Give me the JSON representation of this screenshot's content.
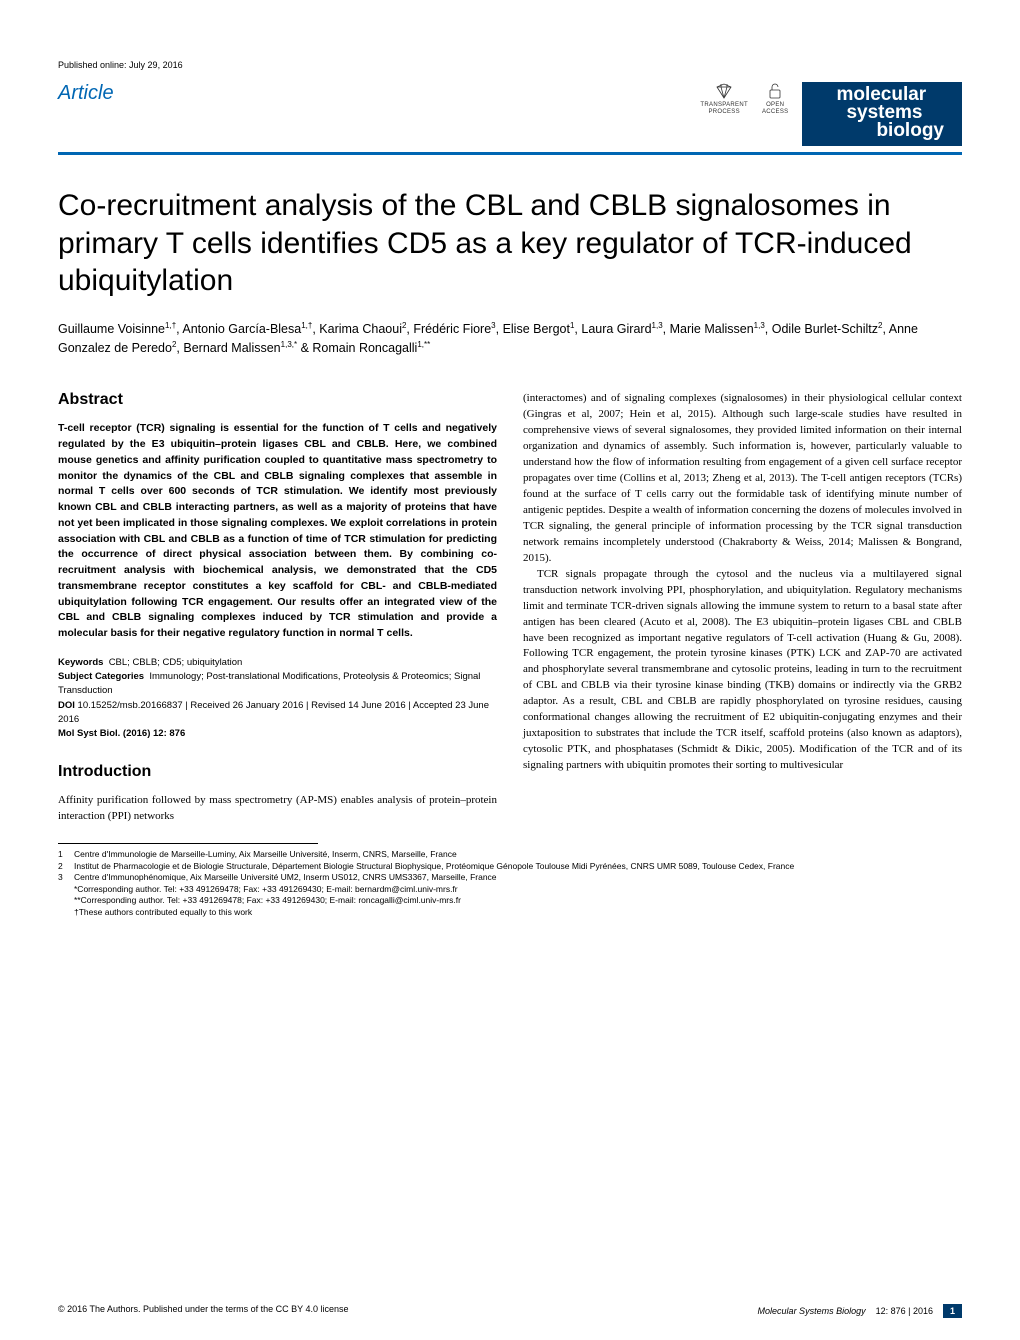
{
  "pub_date": "Published online: July 29, 2016",
  "article_label": "Article",
  "badges": {
    "transparent": "TRANSPARENT\nPROCESS",
    "open": "OPEN\nACCESS"
  },
  "journal": {
    "l1": "molecular",
    "l2": "systems",
    "l3": "biology"
  },
  "title": "Co-recruitment analysis of the CBL and CBLB signalosomes in primary T cells identifies CD5 as a key regulator of TCR-induced ubiquitylation",
  "authors_html": "Guillaume Voisinne<sup>1,†</sup>, Antonio García-Blesa<sup>1,†</sup>, Karima Chaoui<sup>2</sup>, Frédéric Fiore<sup>3</sup>, Elise Bergot<sup>1</sup>, Laura Girard<sup>1,3</sup>, Marie Malissen<sup>1,3</sup>, Odile Burlet-Schiltz<sup>2</sup>, Anne Gonzalez de Peredo<sup>2</sup>, Bernard Malissen<sup>1,3,*</sup> & Romain Roncagalli<sup>1,**</sup>",
  "abstract_h": "Abstract",
  "abstract": "T-cell receptor (TCR) signaling is essential for the function of T cells and negatively regulated by the E3 ubiquitin–protein ligases CBL and CBLB. Here, we combined mouse genetics and affinity purification coupled to quantitative mass spectrometry to monitor the dynamics of the CBL and CBLB signaling complexes that assemble in normal T cells over 600 seconds of TCR stimulation. We identify most previously known CBL and CBLB interacting partners, as well as a majority of proteins that have not yet been implicated in those signaling complexes. We exploit correlations in protein association with CBL and CBLB as a function of time of TCR stimulation for predicting the occurrence of direct physical association between them. By combining co-recruitment analysis with biochemical analysis, we demonstrated that the CD5 transmembrane receptor constitutes a key scaffold for CBL- and CBLB-mediated ubiquitylation following TCR engagement. Our results offer an integrated view of the CBL and CBLB signaling complexes induced by TCR stimulation and provide a molecular basis for their negative regulatory function in normal T cells.",
  "keywords_label": "Keywords",
  "keywords": "CBL; CBLB; CD5; ubiquitylation",
  "subjects_label": "Subject Categories",
  "subjects": "Immunology; Post-translational Modifications, Proteolysis & Proteomics; Signal Transduction",
  "doi_label": "DOI",
  "doi": "10.15252/msb.20166837 | Received 26 January 2016 | Revised 14 June 2016 | Accepted 23 June 2016",
  "cite": "Mol Syst Biol. (2016) 12: 876",
  "intro_h": "Introduction",
  "intro_p1": "Affinity purification followed by mass spectrometry (AP-MS) enables analysis of protein–protein interaction (PPI) networks",
  "right_p1": "(interactomes) and of signaling complexes (signalosomes) in their physiological cellular context (Gingras et al, 2007; Hein et al, 2015). Although such large-scale studies have resulted in comprehensive views of several signalosomes, they provided limited information on their internal organization and dynamics of assembly. Such information is, however, particularly valuable to understand how the flow of information resulting from engagement of a given cell surface receptor propagates over time (Collins et al, 2013; Zheng et al, 2013). The T-cell antigen receptors (TCRs) found at the surface of T cells carry out the formidable task of identifying minute number of antigenic peptides. Despite a wealth of information concerning the dozens of molecules involved in TCR signaling, the general principle of information processing by the TCR signal transduction network remains incompletely understood (Chakraborty & Weiss, 2014; Malissen & Bongrand, 2015).",
  "right_p2": "TCR signals propagate through the cytosol and the nucleus via a multilayered signal transduction network involving PPI, phosphorylation, and ubiquitylation. Regulatory mechanisms limit and terminate TCR-driven signals allowing the immune system to return to a basal state after antigen has been cleared (Acuto et al, 2008). The E3 ubiquitin–protein ligases CBL and CBLB have been recognized as important negative regulators of T-cell activation (Huang & Gu, 2008). Following TCR engagement, the protein tyrosine kinases (PTK) LCK and ZAP-70 are activated and phosphorylate several transmembrane and cytosolic proteins, leading in turn to the recruitment of CBL and CBLB via their tyrosine kinase binding (TKB) domains or indirectly via the GRB2 adaptor. As a result, CBL and CBLB are rapidly phosphorylated on tyrosine residues, causing conformational changes allowing the recruitment of E2 ubiquitin-conjugating enzymes and their juxtaposition to substrates that include the TCR itself, scaffold proteins (also known as adaptors), cytosolic PTK, and phosphatases (Schmidt & Dikic, 2005). Modification of the TCR and of its signaling partners with ubiquitin promotes their sorting to multivesicular",
  "affiliations": [
    "Centre d'Immunologie de Marseille-Luminy, Aix Marseille Université, Inserm, CNRS, Marseille, France",
    "Institut de Pharmacologie et de Biologie Structurale, Département Biologie Structural Biophysique, Protéomique Génopole Toulouse Midi Pyrénées, CNRS UMR 5089, Toulouse Cedex, France",
    "Centre d'Immunophénomique, Aix Marseille Université UM2, Inserm US012, CNRS UMS3367, Marseille, France"
  ],
  "corr1": "*Corresponding author. Tel: +33 491269478; Fax: +33 491269430; E-mail: bernardm@ciml.univ-mrs.fr",
  "corr2": "**Corresponding author. Tel: +33 491269478; Fax: +33 491269430; E-mail: roncagalli@ciml.univ-mrs.fr",
  "contrib": "†These authors contributed equally to this work",
  "footer": {
    "left": "© 2016 The Authors. Published under the terms of the CC BY 4.0 license",
    "journal": "Molecular Systems Biology",
    "issue": "12: 876 | 2016",
    "page": "1"
  },
  "colors": {
    "blue": "#0066b3",
    "darkblue": "#003a6b"
  }
}
